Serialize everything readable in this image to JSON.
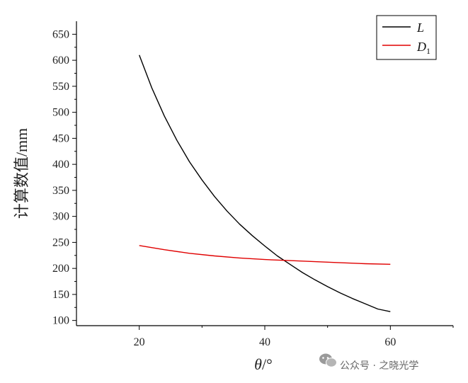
{
  "chart_data": {
    "type": "line",
    "xlabel_var": "θ",
    "xlabel_unit": "/°",
    "ylabel": "计算数值/mm",
    "xlim": [
      10,
      70
    ],
    "ylim": [
      90,
      675
    ],
    "x_ticks": [
      20,
      40,
      60
    ],
    "y_ticks": [
      100,
      150,
      200,
      250,
      300,
      350,
      400,
      450,
      500,
      550,
      600,
      650
    ],
    "legend_position": "top-right",
    "series": [
      {
        "name": "L",
        "color": "#000000",
        "x": [
          20,
          22,
          24,
          26,
          28,
          30,
          32,
          34,
          36,
          38,
          40,
          42,
          44,
          46,
          48,
          50,
          52,
          54,
          56,
          58,
          60
        ],
        "y": [
          610,
          547,
          493,
          446,
          405,
          370,
          338,
          310,
          285,
          263,
          243,
          224,
          208,
          192,
          178,
          165,
          153,
          142,
          132,
          122,
          117
        ]
      },
      {
        "name": "D",
        "name_sub": "1",
        "color": "#e00000",
        "x": [
          20,
          24,
          28,
          32,
          36,
          40,
          44,
          48,
          52,
          56,
          60
        ],
        "y": [
          244,
          236,
          229,
          224,
          220,
          217,
          215,
          213,
          211,
          209,
          208
        ]
      }
    ]
  },
  "watermark": {
    "icon": "wechat-icon",
    "text": "公众号 · 之晓光学"
  }
}
